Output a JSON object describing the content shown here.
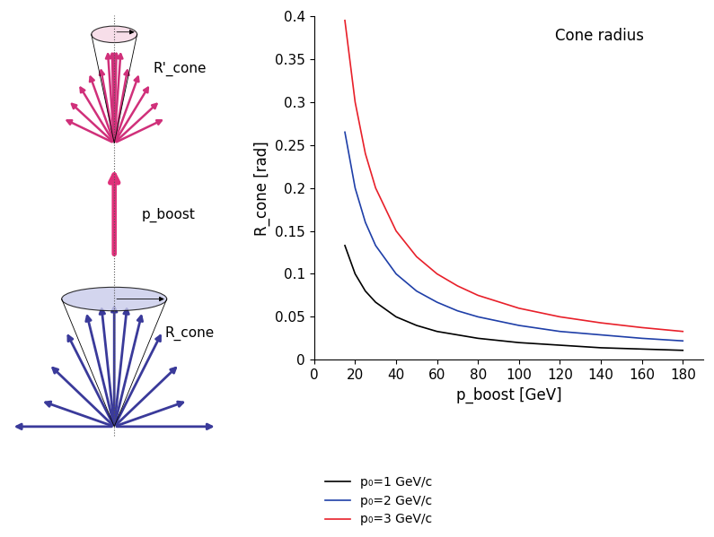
{
  "chart_data": {
    "type": "line",
    "title": "Cone radius",
    "x_label": "p_boost [GeV]",
    "y_label": "R_cone [rad]",
    "x": [
      15,
      20,
      25,
      30,
      40,
      50,
      60,
      70,
      80,
      100,
      120,
      140,
      160,
      180
    ],
    "series": [
      {
        "name": "p₀=1 GeV/c",
        "color": "#000000",
        "values": [
          0.133,
          0.1,
          0.08,
          0.067,
          0.05,
          0.04,
          0.033,
          0.029,
          0.025,
          0.02,
          0.017,
          0.014,
          0.0125,
          0.011
        ]
      },
      {
        "name": "p₀=2 GeV/c",
        "color": "#1f3fa8",
        "values": [
          0.265,
          0.2,
          0.16,
          0.133,
          0.1,
          0.08,
          0.067,
          0.057,
          0.05,
          0.04,
          0.033,
          0.029,
          0.025,
          0.022
        ]
      },
      {
        "name": "p₀=3 GeV/c",
        "color": "#e8202a",
        "values": [
          0.395,
          0.3,
          0.24,
          0.2,
          0.15,
          0.12,
          0.1,
          0.086,
          0.075,
          0.06,
          0.05,
          0.043,
          0.0375,
          0.033
        ]
      }
    ],
    "xlim": [
      0,
      190
    ],
    "xticks": [
      0,
      20,
      40,
      60,
      80,
      100,
      120,
      140,
      160,
      180
    ],
    "ylim": [
      0,
      0.4
    ],
    "yticks": [
      0,
      0.05,
      0.1,
      0.15,
      0.2,
      0.25,
      0.3,
      0.35,
      0.4
    ],
    "grid": false,
    "legend": "below"
  },
  "diagram": {
    "boosted_cone_label": "R'_cone",
    "boost_label": "p_boost",
    "rest_cone_label": "R_cone"
  }
}
